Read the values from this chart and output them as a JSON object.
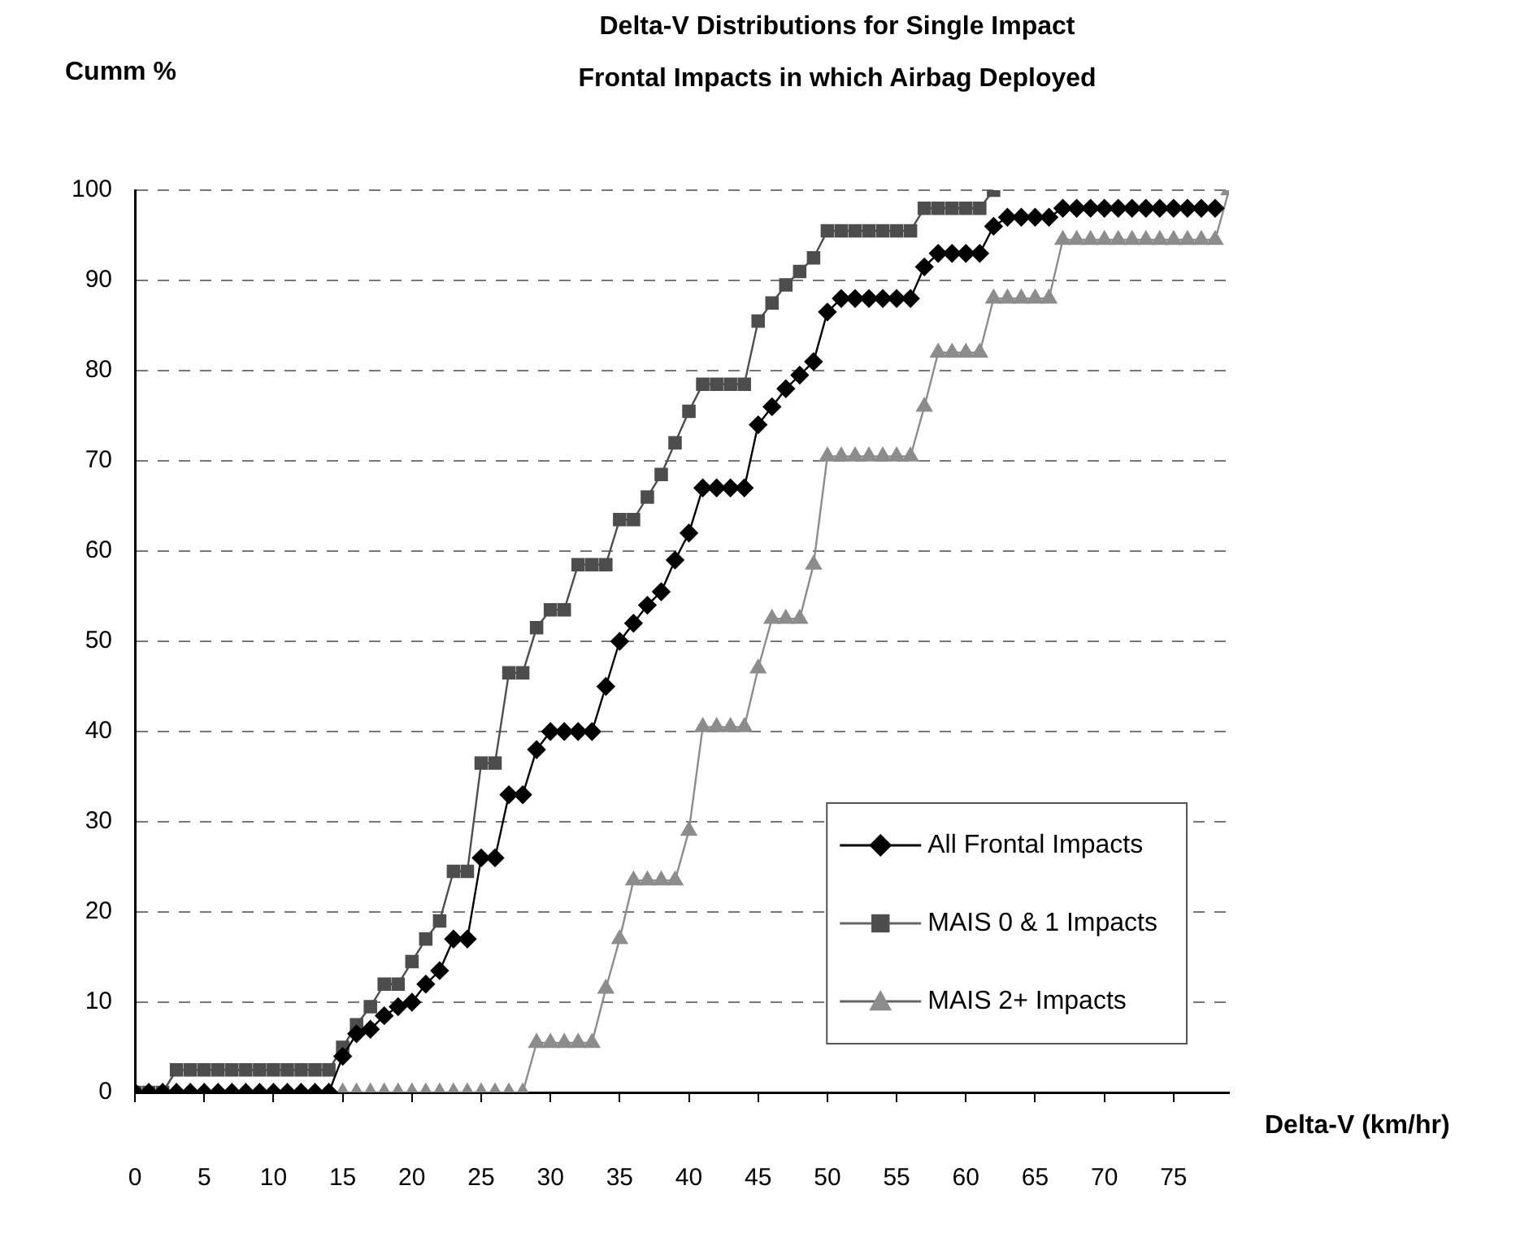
{
  "chart_data": {
    "type": "line",
    "title": "Delta-V Distributions for Single Impact",
    "subtitle": "Frontal Impacts in which Airbag Deployed",
    "xlabel": "Delta-V (km/hr)",
    "ylabel": "Cumm %",
    "x": [
      0,
      1,
      2,
      3,
      4,
      5,
      6,
      7,
      8,
      9,
      10,
      11,
      12,
      13,
      14,
      15,
      16,
      17,
      18,
      19,
      20,
      21,
      22,
      23,
      24,
      25,
      26,
      27,
      28,
      29,
      30,
      31,
      32,
      33,
      34,
      35,
      36,
      37,
      38,
      39,
      40,
      41,
      42,
      43,
      44,
      45,
      46,
      47,
      48,
      49,
      50,
      51,
      52,
      53,
      54,
      55,
      56,
      57,
      58,
      59,
      60,
      61,
      62,
      63,
      64,
      65,
      66,
      67,
      68,
      69,
      70,
      71,
      72,
      73,
      74,
      75,
      76,
      77,
      78,
      79
    ],
    "series": [
      {
        "name": "All Frontal Impacts",
        "color": "#000000",
        "marker": "diamond",
        "values": [
          0,
          0,
          0,
          0,
          0,
          0,
          0,
          0,
          0,
          0,
          0,
          0,
          0,
          0,
          0,
          4,
          6.5,
          7,
          8.5,
          9.5,
          10,
          12,
          13.5,
          17,
          17,
          26,
          26,
          33,
          33,
          38,
          40,
          40,
          40,
          40,
          45,
          50,
          52,
          54,
          55.5,
          59,
          62,
          67,
          67,
          67,
          67,
          74,
          76,
          78,
          79.5,
          81,
          86.5,
          88,
          88,
          88,
          88,
          88,
          88,
          91.5,
          93,
          93,
          93,
          93,
          96,
          97,
          97,
          97,
          97,
          98,
          98,
          98,
          98,
          98,
          98,
          98,
          98,
          98,
          98,
          98,
          98,
          null
        ]
      },
      {
        "name": "MAIS 0 & 1 Impacts",
        "color": "#4d4d4d",
        "marker": "square",
        "values": [
          0,
          0,
          0,
          2.5,
          2.5,
          2.5,
          2.5,
          2.5,
          2.5,
          2.5,
          2.5,
          2.5,
          2.5,
          2.5,
          2.5,
          5,
          7.5,
          9.5,
          12,
          12,
          14.5,
          17,
          19,
          24.5,
          24.5,
          36.5,
          36.5,
          46.5,
          46.5,
          51.5,
          53.5,
          53.5,
          58.5,
          58.5,
          58.5,
          63.5,
          63.5,
          66,
          68.5,
          72,
          75.5,
          78.5,
          78.5,
          78.5,
          78.5,
          85.5,
          87.5,
          89.5,
          91,
          92.5,
          95.5,
          95.5,
          95.5,
          95.5,
          95.5,
          95.5,
          95.5,
          98,
          98,
          98,
          98,
          98,
          100,
          null,
          null,
          null,
          null,
          null,
          null,
          null,
          null,
          null,
          null,
          null,
          null,
          null,
          null,
          null,
          null,
          null
        ]
      },
      {
        "name": "MAIS 2+ Impacts",
        "color": "#8c8c8c",
        "marker": "triangle",
        "values": [
          0,
          0,
          0,
          0,
          0,
          0,
          0,
          0,
          0,
          0,
          0,
          0,
          0,
          0,
          0,
          0,
          0,
          0,
          0,
          0,
          0,
          0,
          0,
          0,
          0,
          0,
          0,
          0,
          0,
          5.5,
          5.5,
          5.5,
          5.5,
          5.5,
          11.5,
          17,
          23.5,
          23.5,
          23.5,
          23.5,
          29,
          40.5,
          40.5,
          40.5,
          40.5,
          47,
          52.5,
          52.5,
          52.5,
          58.5,
          70.5,
          70.5,
          70.5,
          70.5,
          70.5,
          70.5,
          70.5,
          76,
          82,
          82,
          82,
          82,
          88,
          88,
          88,
          88,
          88,
          94.5,
          94.5,
          94.5,
          94.5,
          94.5,
          94.5,
          94.5,
          94.5,
          94.5,
          94.5,
          94.5,
          94.5,
          100
        ]
      }
    ],
    "xlim": [
      0,
      79
    ],
    "xticks": [
      0,
      5,
      10,
      15,
      20,
      25,
      30,
      35,
      40,
      45,
      50,
      55,
      60,
      65,
      70,
      75
    ],
    "ylim": [
      0,
      100
    ],
    "yticks": [
      0,
      10,
      20,
      30,
      40,
      50,
      60,
      70,
      80,
      90,
      100
    ],
    "grid": "y",
    "legend": "bottom right"
  }
}
